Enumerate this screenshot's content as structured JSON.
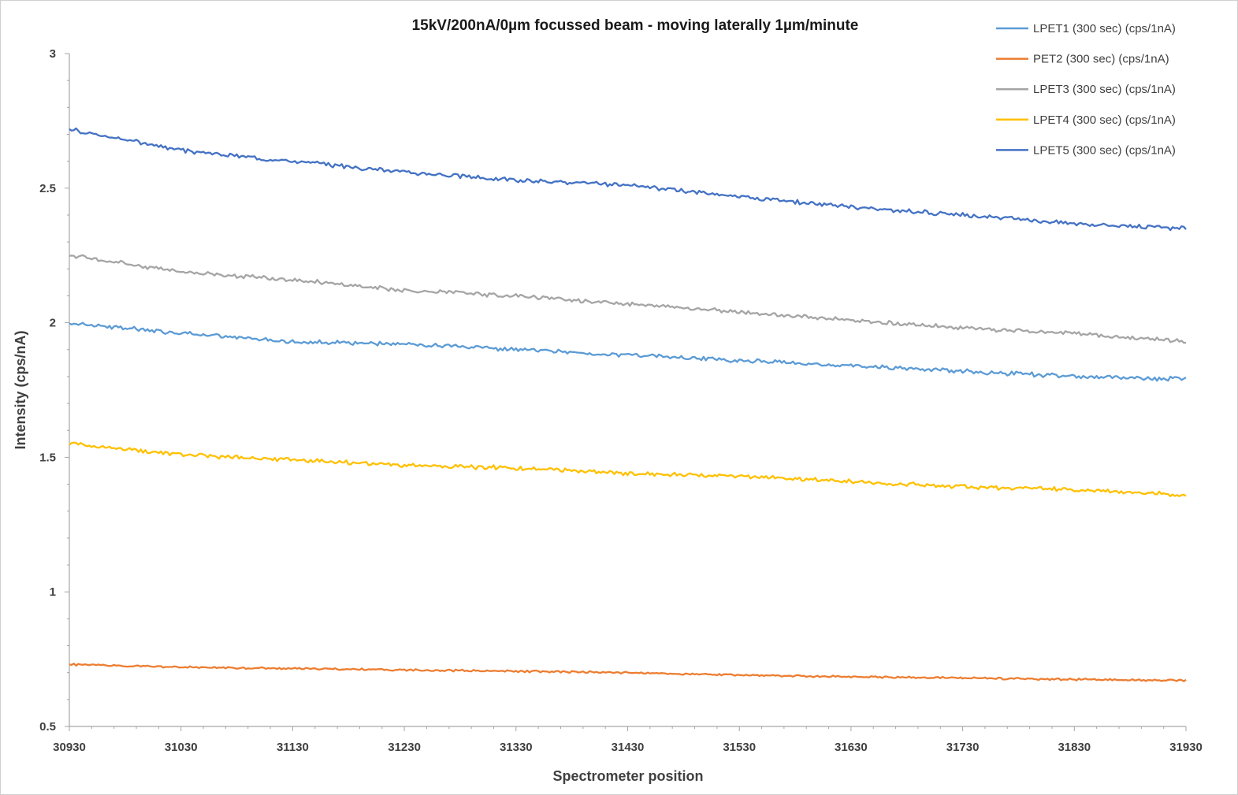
{
  "chart_data": {
    "type": "line",
    "title": "15kV/200nA/0µm focussed beam - moving laterally 1µm/minute",
    "xlabel": "Spectrometer position",
    "ylabel": "Intensity (cps/nA)",
    "xlim": [
      30930,
      31930
    ],
    "ylim": [
      0.5,
      3
    ],
    "x_ticks": [
      "30930",
      "31030",
      "31130",
      "31230",
      "31330",
      "31430",
      "31530",
      "31630",
      "31730",
      "31830",
      "31930"
    ],
    "y_ticks": [
      "0.5",
      "1",
      "1.5",
      "2",
      "2.5",
      "3"
    ],
    "grid": false,
    "legend_position": "top-right",
    "series": [
      {
        "name": "LPET1 (300 sec) (cps/1nA)",
        "color": "#5b9bd5",
        "x": [
          30930,
          31030,
          31130,
          31230,
          31330,
          31430,
          31530,
          31630,
          31730,
          31830,
          31930
        ],
        "values": [
          2.0,
          1.96,
          1.93,
          1.92,
          1.9,
          1.88,
          1.86,
          1.84,
          1.82,
          1.8,
          1.79
        ]
      },
      {
        "name": "PET2 (300 sec) (cps/1nA)",
        "color": "#ed7d31",
        "x": [
          30930,
          31030,
          31130,
          31230,
          31330,
          31430,
          31530,
          31630,
          31730,
          31830,
          31930
        ],
        "values": [
          0.73,
          0.72,
          0.715,
          0.71,
          0.705,
          0.7,
          0.69,
          0.685,
          0.68,
          0.675,
          0.67
        ]
      },
      {
        "name": "LPET3 (300 sec) (cps/1nA)",
        "color": "#a5a5a5",
        "x": [
          30930,
          31030,
          31130,
          31230,
          31330,
          31430,
          31530,
          31630,
          31730,
          31830,
          31930
        ],
        "values": [
          2.25,
          2.19,
          2.16,
          2.12,
          2.1,
          2.07,
          2.04,
          2.01,
          1.98,
          1.96,
          1.93
        ]
      },
      {
        "name": "LPET4 (300 sec) (cps/1nA)",
        "color": "#ffc000",
        "x": [
          30930,
          31030,
          31130,
          31230,
          31330,
          31430,
          31530,
          31630,
          31730,
          31830,
          31930
        ],
        "values": [
          1.55,
          1.51,
          1.49,
          1.47,
          1.46,
          1.44,
          1.43,
          1.41,
          1.39,
          1.38,
          1.36
        ]
      },
      {
        "name": "LPET5 (300 sec) (cps/1nA)",
        "color": "#4472c4",
        "x": [
          30930,
          31030,
          31130,
          31230,
          31330,
          31430,
          31530,
          31630,
          31730,
          31830,
          31930
        ],
        "values": [
          2.72,
          2.64,
          2.6,
          2.56,
          2.53,
          2.51,
          2.47,
          2.43,
          2.4,
          2.37,
          2.35
        ]
      }
    ]
  }
}
